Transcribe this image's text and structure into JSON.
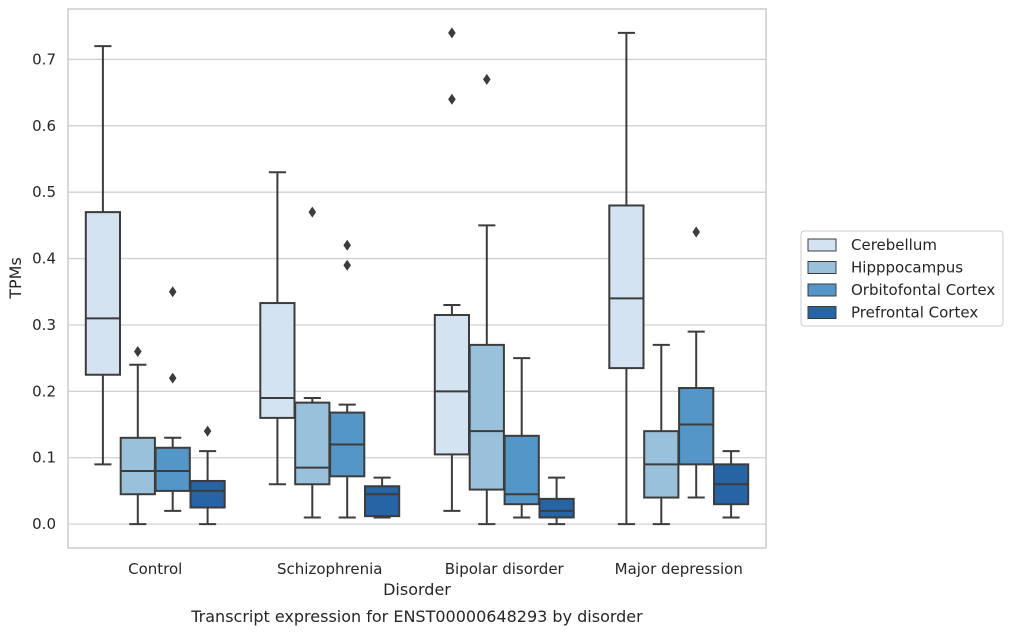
{
  "chart_data": {
    "type": "box",
    "title": "",
    "caption": "Transcript expression for ENST00000648293 by disorder",
    "xlabel": "Disorder",
    "ylabel": "TPMs",
    "ylim": [
      -0.036,
      0.776
    ],
    "yticks": [
      "0.0",
      "0.1",
      "0.2",
      "0.3",
      "0.4",
      "0.5",
      "0.6",
      "0.7"
    ],
    "grid": "horizontal",
    "legend_position": "right",
    "categories": [
      "Control",
      "Schizophrenia",
      "Bipolar disorder",
      "Major depression"
    ],
    "series": [
      {
        "name": "Cerebellum",
        "color": "#d3e3f2",
        "boxes": [
          {
            "whisker_low": 0.09,
            "q1": 0.225,
            "median": 0.31,
            "q3": 0.47,
            "whisker_high": 0.72,
            "outliers": []
          },
          {
            "whisker_low": 0.06,
            "q1": 0.16,
            "median": 0.19,
            "q3": 0.333,
            "whisker_high": 0.53,
            "outliers": []
          },
          {
            "whisker_low": 0.02,
            "q1": 0.105,
            "median": 0.2,
            "q3": 0.315,
            "whisker_high": 0.33,
            "outliers": [
              0.64,
              0.74
            ]
          },
          {
            "whisker_low": 0.0,
            "q1": 0.235,
            "median": 0.34,
            "q3": 0.48,
            "whisker_high": 0.74,
            "outliers": []
          }
        ]
      },
      {
        "name": "Hipppocampus",
        "color": "#9ac1dc",
        "boxes": [
          {
            "whisker_low": 0.0,
            "q1": 0.045,
            "median": 0.08,
            "q3": 0.13,
            "whisker_high": 0.24,
            "outliers": [
              0.26
            ]
          },
          {
            "whisker_low": 0.01,
            "q1": 0.06,
            "median": 0.085,
            "q3": 0.183,
            "whisker_high": 0.19,
            "outliers": [
              0.47
            ]
          },
          {
            "whisker_low": 0.0,
            "q1": 0.052,
            "median": 0.14,
            "q3": 0.27,
            "whisker_high": 0.45,
            "outliers": [
              0.67
            ]
          },
          {
            "whisker_low": 0.0,
            "q1": 0.04,
            "median": 0.09,
            "q3": 0.14,
            "whisker_high": 0.27,
            "outliers": []
          }
        ]
      },
      {
        "name": "Orbitofontal Cortex",
        "color": "#5596c8",
        "boxes": [
          {
            "whisker_low": 0.02,
            "q1": 0.05,
            "median": 0.08,
            "q3": 0.115,
            "whisker_high": 0.13,
            "outliers": [
              0.22,
              0.35
            ]
          },
          {
            "whisker_low": 0.01,
            "q1": 0.072,
            "median": 0.12,
            "q3": 0.168,
            "whisker_high": 0.18,
            "outliers": [
              0.39,
              0.42
            ]
          },
          {
            "whisker_low": 0.01,
            "q1": 0.03,
            "median": 0.045,
            "q3": 0.133,
            "whisker_high": 0.25,
            "outliers": []
          },
          {
            "whisker_low": 0.04,
            "q1": 0.09,
            "median": 0.15,
            "q3": 0.205,
            "whisker_high": 0.29,
            "outliers": [
              0.44
            ]
          }
        ]
      },
      {
        "name": "Prefrontal Cortex",
        "color": "#2764a6",
        "boxes": [
          {
            "whisker_low": 0.0,
            "q1": 0.025,
            "median": 0.05,
            "q3": 0.065,
            "whisker_high": 0.11,
            "outliers": [
              0.14
            ]
          },
          {
            "whisker_low": 0.01,
            "q1": 0.012,
            "median": 0.045,
            "q3": 0.057,
            "whisker_high": 0.07,
            "outliers": []
          },
          {
            "whisker_low": 0.0,
            "q1": 0.01,
            "median": 0.02,
            "q3": 0.038,
            "whisker_high": 0.07,
            "outliers": []
          },
          {
            "whisker_low": 0.01,
            "q1": 0.03,
            "median": 0.06,
            "q3": 0.09,
            "whisker_high": 0.11,
            "outliers": []
          }
        ]
      }
    ]
  }
}
